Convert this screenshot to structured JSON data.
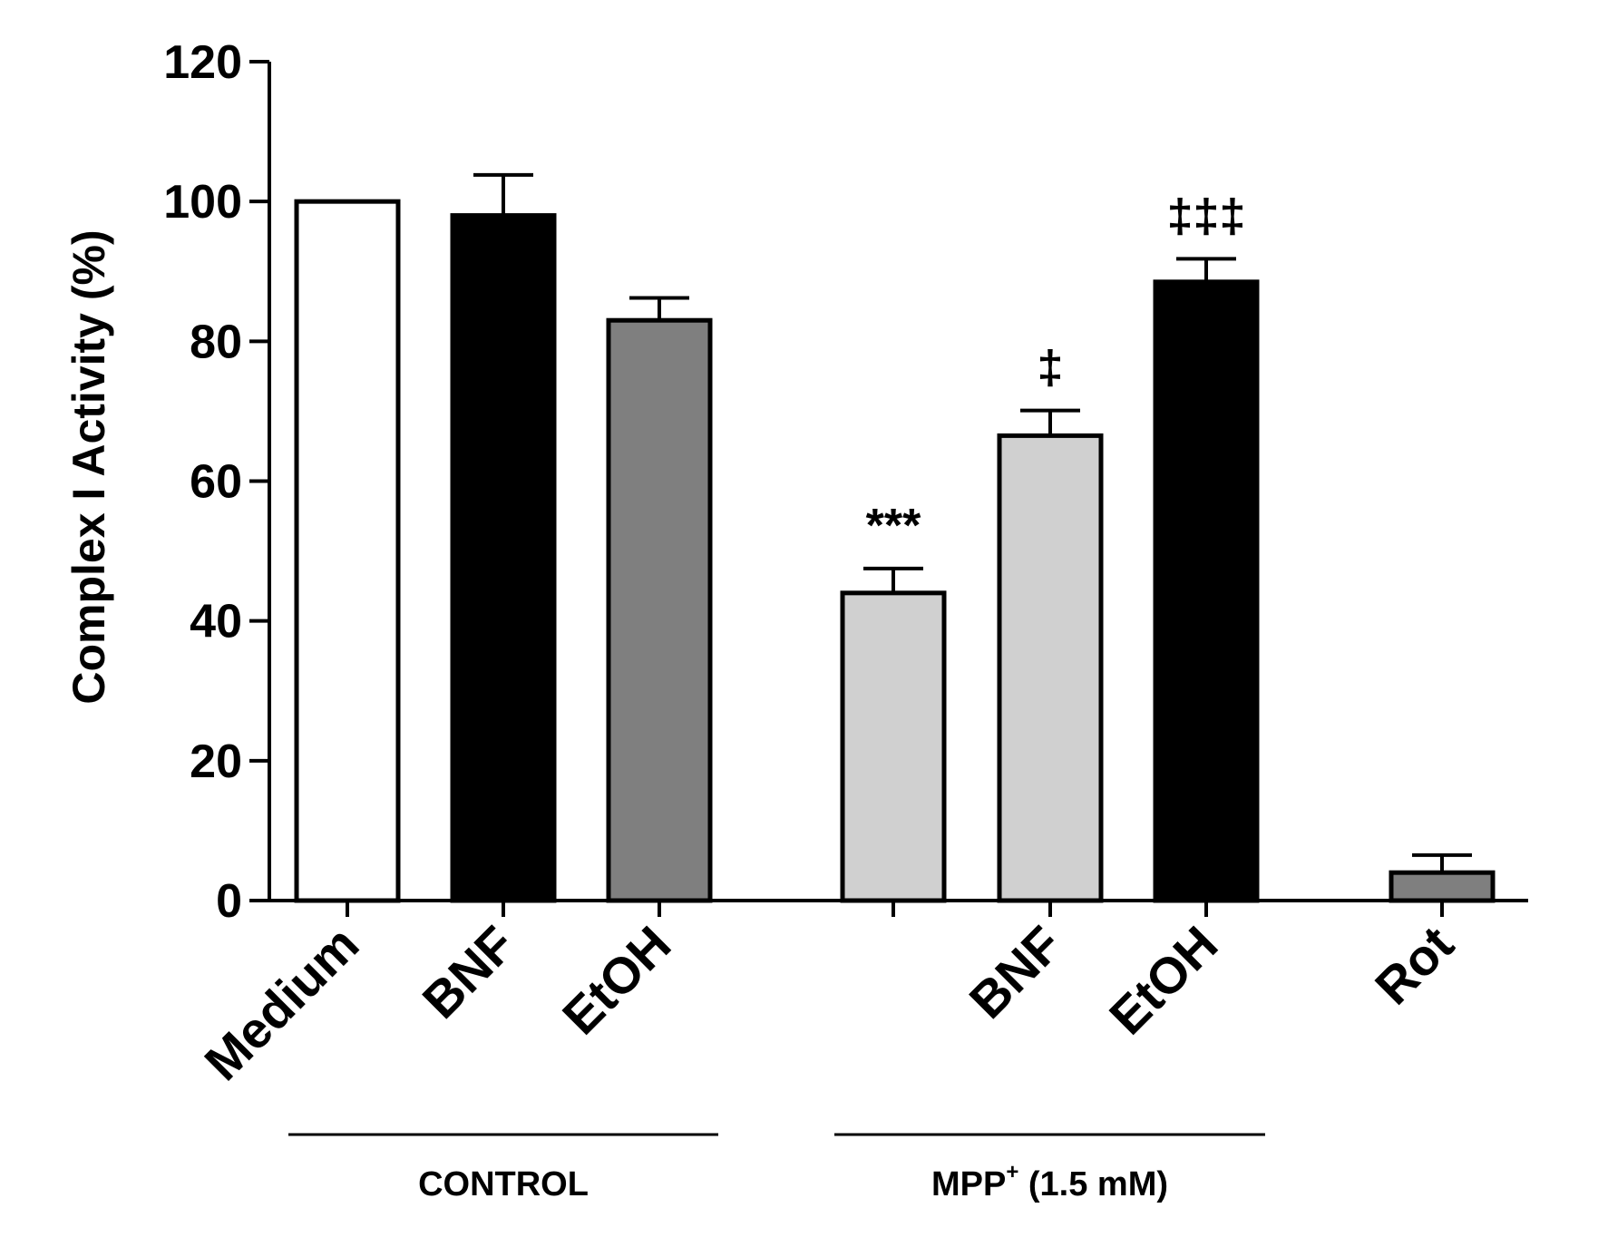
{
  "chart_data": {
    "type": "bar",
    "title": "",
    "xlabel": "",
    "ylabel": "Complex I Activity (%)",
    "ylim": [
      0,
      120
    ],
    "yticks": [
      0,
      20,
      40,
      60,
      80,
      100,
      120
    ],
    "grid": false,
    "legend": null,
    "bars": [
      {
        "label": "Medium",
        "value": 100,
        "error": 0,
        "color": "#ffffff",
        "annotation": ""
      },
      {
        "label": "BNF",
        "value": 98,
        "error": 5.8,
        "color": "#000000",
        "annotation": ""
      },
      {
        "label": "EtOH",
        "value": 83,
        "error": 3.2,
        "color": "#7f7f7f",
        "annotation": ""
      },
      {
        "label": "",
        "value": 44,
        "error": 3.5,
        "color": "#d0d0d0",
        "annotation": "***"
      },
      {
        "label": "BNF",
        "value": 66.5,
        "error": 3.6,
        "color": "#d0d0d0",
        "annotation": "‡"
      },
      {
        "label": "EtOH",
        "value": 88.5,
        "error": 3.3,
        "color": "#000000",
        "annotation": "‡‡‡"
      },
      {
        "label": "Rot",
        "value": 4,
        "error": 2.5,
        "color": "#7f7f7f",
        "annotation": ""
      }
    ],
    "groups": [
      {
        "label": "CONTROL",
        "label_suffix": "",
        "bar_indices": [
          0,
          1,
          2
        ]
      },
      {
        "label": "MPP",
        "label_sup": "+",
        "label_suffix": " (1.5 mM)",
        "bar_indices": [
          3,
          4,
          5
        ]
      }
    ]
  }
}
